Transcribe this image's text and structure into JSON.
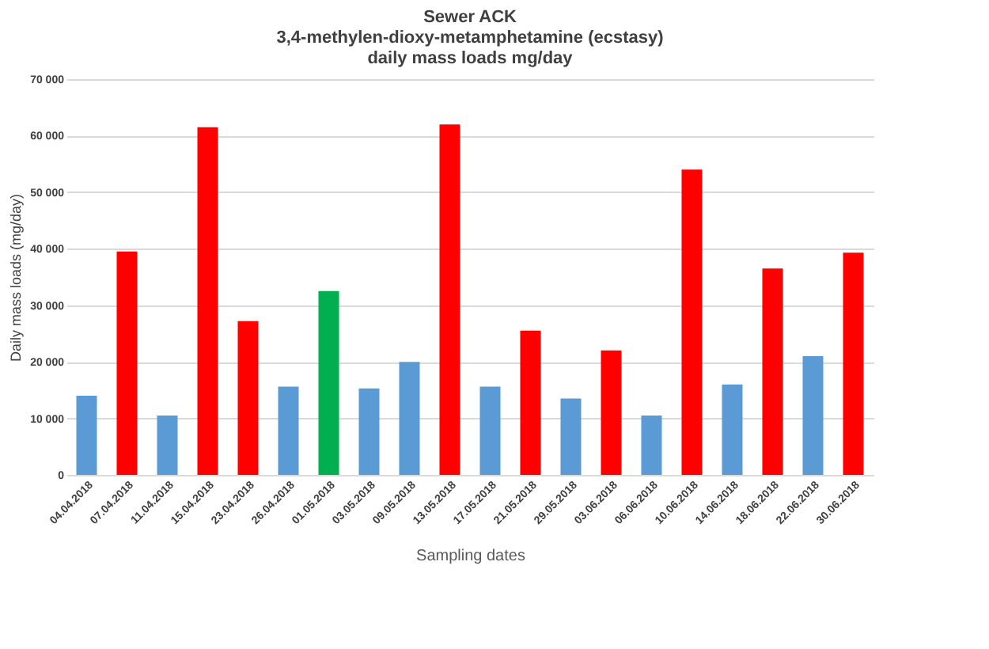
{
  "chart_data": {
    "type": "bar",
    "title": [
      "Sewer ACK",
      "3,4-methylen-dioxy-metamphetamine (ecstasy)",
      "daily mass loads mg/day"
    ],
    "xlabel": "Sampling dates",
    "ylabel": "Daily mass loads (mg/day)",
    "categories": [
      "04.04.2018",
      "07.04.2018",
      "11.04.2018",
      "15.04.2018",
      "23.04.2018",
      "26.04.2018",
      "01.05.2018",
      "03.05.2018",
      "09.05.2018",
      "13.05.2018",
      "17.05.2018",
      "21.05.2018",
      "29.05.2018",
      "03.06.2018",
      "06.06.2018",
      "10.06.2018",
      "14.06.2018",
      "18.06.2018",
      "22.06.2018",
      "30.06.2018"
    ],
    "values": [
      14000,
      39500,
      10500,
      61500,
      27200,
      15600,
      32500,
      15300,
      20000,
      62000,
      15600,
      25500,
      13500,
      22000,
      10500,
      54000,
      16000,
      36500,
      21000,
      39300
    ],
    "colors": [
      "#5b9bd5",
      "#ff0000",
      "#5b9bd5",
      "#ff0000",
      "#ff0000",
      "#5b9bd5",
      "#00b050",
      "#5b9bd5",
      "#5b9bd5",
      "#ff0000",
      "#5b9bd5",
      "#ff0000",
      "#5b9bd5",
      "#ff0000",
      "#5b9bd5",
      "#ff0000",
      "#5b9bd5",
      "#ff0000",
      "#5b9bd5",
      "#ff0000"
    ],
    "ylim": [
      0,
      70000
    ],
    "yticks": [
      0,
      {
        "value": 10000,
        "label": "10 000"
      },
      {
        "value": 20000,
        "label": "20 000"
      },
      {
        "value": 30000,
        "label": "30 000"
      },
      {
        "value": 40000,
        "label": "40 000"
      },
      {
        "value": 50000,
        "label": "50 000"
      },
      {
        "value": 60000,
        "label": "60 000"
      },
      {
        "value": 70000,
        "label": "70 000"
      }
    ],
    "grid": "y"
  }
}
